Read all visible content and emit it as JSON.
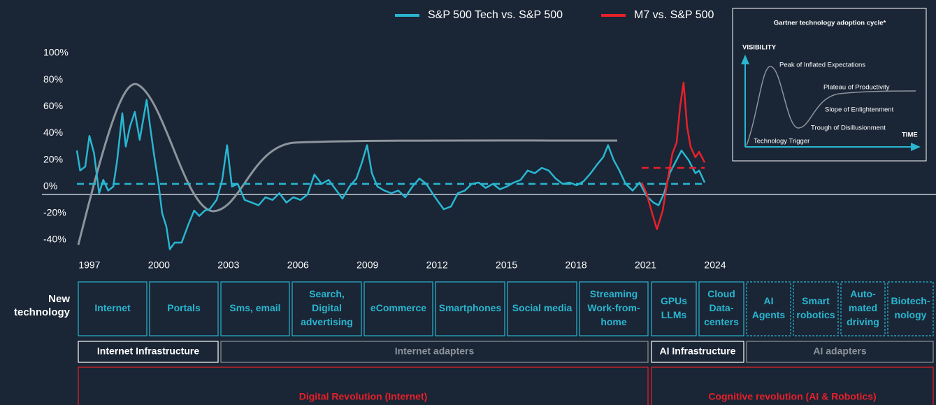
{
  "chart_data": {
    "type": "line",
    "x": [
      1996.46,
      1996.6,
      1996.82,
      1997.0,
      1997.2,
      1997.42,
      1997.6,
      1997.81,
      1998.03,
      1998.2,
      1998.42,
      1998.57,
      1998.75,
      1998.96,
      1999.17,
      1999.32,
      1999.47,
      1999.62,
      1999.78,
      1999.96,
      2000.14,
      2000.32,
      2000.47,
      2000.68,
      2000.98,
      2001.28,
      2001.52,
      2001.74,
      2001.98,
      2002.19,
      2002.49,
      2002.73,
      2002.94,
      2003.15,
      2003.4,
      2003.7,
      2004.0,
      2004.3,
      2004.6,
      2004.9,
      2005.2,
      2005.5,
      2005.8,
      2006.11,
      2006.41,
      2006.71,
      2007.02,
      2007.32,
      2007.62,
      2007.92,
      2008.22,
      2008.52,
      2008.76,
      2008.98,
      2009.19,
      2009.43,
      2009.73,
      2010.03,
      2010.33,
      2010.63,
      2010.94,
      2011.24,
      2011.54,
      2011.84,
      2012.08,
      2012.29,
      2012.6,
      2012.9,
      2013.2,
      2013.5,
      2013.8,
      2014.1,
      2014.41,
      2014.71,
      2015.01,
      2015.31,
      2015.61,
      2015.91,
      2016.22,
      2016.52,
      2016.82,
      2017.12,
      2017.42,
      2017.72,
      2018.03,
      2018.33,
      2018.63,
      2018.93,
      2019.17,
      2019.38,
      2019.62,
      2019.87,
      2020.14,
      2020.44,
      2020.74,
      2021.04,
      2021.34,
      2021.56,
      2021.8,
      2022.04,
      2022.28,
      2022.55,
      2022.85,
      2023.15,
      2023.31,
      2023.55
    ],
    "series": [
      {
        "name": "S&P 500 Tech vs. S&P 500",
        "color": "#29b6d0",
        "average": 2,
        "values": [
          27,
          12,
          15,
          38,
          25,
          -5,
          5,
          -3,
          0,
          20,
          55,
          30,
          45,
          56,
          35,
          50,
          65,
          45,
          25,
          5,
          -20,
          -30,
          -47,
          -42,
          -42,
          -28,
          -18,
          -22,
          -18,
          -17,
          -10,
          5,
          31,
          0,
          2,
          -10,
          -12,
          -14,
          -8,
          -10,
          -5,
          -12,
          -8,
          -10,
          -6,
          9,
          2,
          5,
          -2,
          -9,
          0,
          6,
          18,
          31,
          10,
          0,
          -3,
          -5,
          -3,
          -8,
          0,
          6,
          2,
          -6,
          -12,
          -17,
          -15,
          -5,
          -3,
          2,
          3,
          -1,
          2,
          -2,
          0,
          3,
          5,
          12,
          10,
          14,
          12,
          6,
          2,
          3,
          1,
          4,
          10,
          17,
          22,
          31,
          20,
          12,
          2,
          -3,
          3,
          -7,
          -12,
          -14,
          -5,
          10,
          18,
          27,
          20,
          10,
          12,
          3
        ]
      },
      {
        "name": "M7 vs. S&P 500",
        "color": "#e8202a",
        "average": 14,
        "x": [
          2020.83,
          2021.04,
          2021.25,
          2021.49,
          2021.74,
          2021.95,
          2022.16,
          2022.34,
          2022.49,
          2022.64,
          2022.79,
          2022.94,
          2023.15,
          2023.31,
          2023.55
        ],
        "values": [
          3,
          -5,
          -18,
          -32,
          -18,
          5,
          25,
          33,
          60,
          78,
          45,
          30,
          22,
          26,
          18
        ]
      }
    ],
    "xlim": [
      1996.46,
      2024
    ],
    "xticks": [
      1997,
      2000,
      2003,
      2006,
      2009,
      2012,
      2015,
      2018,
      2021,
      2024
    ],
    "ylim": [
      -40,
      100
    ],
    "yticks": [
      {
        "value": 100,
        "label": "100%"
      },
      {
        "value": 80,
        "label": "80%"
      },
      {
        "value": 60,
        "label": "60%"
      },
      {
        "value": 40,
        "label": "40%"
      },
      {
        "value": 20,
        "label": "20%"
      },
      {
        "value": 0,
        "label": "0%"
      },
      {
        "value": -20,
        "label": "-20%"
      },
      {
        "value": -40,
        "label": "-40%"
      }
    ]
  },
  "inset": {
    "title": "Gartner technology adoption cycle*",
    "y_axis": "VISIBILITY",
    "x_axis": "TIME",
    "phases": [
      "Peak of Inflated Expectations",
      "Plateau of Productivity",
      "Slope of Enlightenment",
      "Trough of Disillusionment",
      "Technology Trigger"
    ]
  },
  "timeline": {
    "row_label": [
      "New",
      "technology"
    ],
    "technologies": [
      [
        "Internet"
      ],
      [
        "Portals"
      ],
      [
        "Sms, email"
      ],
      [
        "Search,",
        "Digital",
        "advertising"
      ],
      [
        "eCommerce"
      ],
      [
        "Smartphones"
      ],
      [
        "Social media"
      ],
      [
        "Streaming",
        "Work-from-",
        "home"
      ],
      [
        "GPUs",
        "LLMs"
      ],
      [
        "Cloud",
        "Data-",
        "centers"
      ],
      [
        "AI",
        "Agents"
      ],
      [
        "Smart",
        "robotics"
      ],
      [
        "Auto-",
        "mated",
        "driving"
      ],
      [
        "Biotech-",
        "nology"
      ]
    ],
    "phases": [
      "Internet Infrastructure",
      "Internet adapters",
      "AI Infrastructure",
      "AI adapters"
    ],
    "revolutions": [
      "Digital Revolution (Internet)",
      "Cognitive revolution (AI & Robotics)"
    ]
  }
}
